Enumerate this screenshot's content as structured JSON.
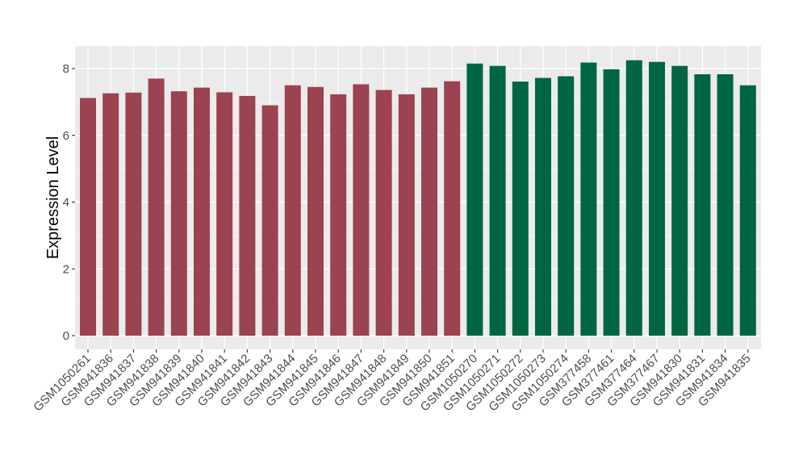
{
  "chart_data": {
    "type": "bar",
    "title": "",
    "xlabel": "",
    "ylabel": "Expression Level",
    "ylim": [
      0,
      8.7
    ],
    "yticks": [
      0,
      2,
      4,
      6,
      8
    ],
    "grid": true,
    "legend": "none",
    "colors": {
      "group1": "#9b4350",
      "group2": "#006641",
      "panel": "#ebebeb",
      "grid": "#ffffff"
    },
    "categories": [
      "GSM1050261",
      "GSM941836",
      "GSM941837",
      "GSM941838",
      "GSM941839",
      "GSM941840",
      "GSM941841",
      "GSM941842",
      "GSM941843",
      "GSM941844",
      "GSM941845",
      "GSM941846",
      "GSM941847",
      "GSM941848",
      "GSM941849",
      "GSM941850",
      "GSM941851",
      "GSM1050270",
      "GSM1050271",
      "GSM1050272",
      "GSM1050273",
      "GSM1050274",
      "GSM377458",
      "GSM377461",
      "GSM377464",
      "GSM377467",
      "GSM941830",
      "GSM941831",
      "GSM941834",
      "GSM941835"
    ],
    "values": [
      7.12,
      7.26,
      7.28,
      7.7,
      7.32,
      7.43,
      7.29,
      7.18,
      6.9,
      7.5,
      7.45,
      7.23,
      7.53,
      7.36,
      7.23,
      7.43,
      7.62,
      8.15,
      8.08,
      7.61,
      7.72,
      7.77,
      8.18,
      7.98,
      8.25,
      8.2,
      8.08,
      7.83,
      7.83,
      7.5
    ],
    "groups": [
      "group1",
      "group1",
      "group1",
      "group1",
      "group1",
      "group1",
      "group1",
      "group1",
      "group1",
      "group1",
      "group1",
      "group1",
      "group1",
      "group1",
      "group1",
      "group1",
      "group1",
      "group2",
      "group2",
      "group2",
      "group2",
      "group2",
      "group2",
      "group2",
      "group2",
      "group2",
      "group2",
      "group2",
      "group2",
      "group2"
    ]
  }
}
